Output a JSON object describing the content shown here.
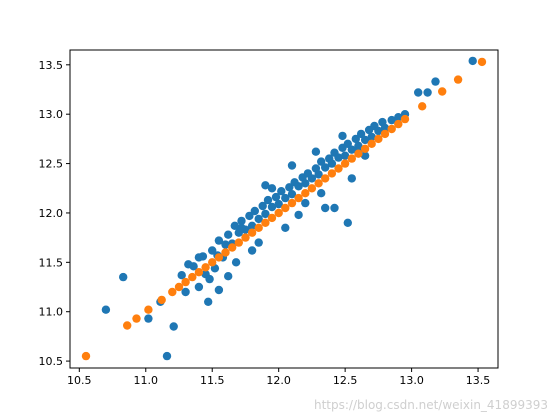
{
  "chart_data": {
    "type": "scatter",
    "title": "",
    "xlabel": "",
    "ylabel": "",
    "xlim": [
      10.43,
      13.65
    ],
    "ylim": [
      10.43,
      13.65
    ],
    "grid": false,
    "x_ticks": [
      "10.5",
      "11.0",
      "11.5",
      "12.0",
      "12.5",
      "13.0",
      "13.5"
    ],
    "y_ticks": [
      "10.5",
      "11.0",
      "11.5",
      "12.0",
      "12.5",
      "13.0",
      "13.5"
    ],
    "series": [
      {
        "color": "#1f77b4",
        "x": [
          10.7,
          10.83,
          11.02,
          11.11,
          11.16,
          11.21,
          11.27,
          11.3,
          11.32,
          11.36,
          11.4,
          11.43,
          11.45,
          11.47,
          11.5,
          11.52,
          11.54,
          11.55,
          11.58,
          11.6,
          11.62,
          11.65,
          11.67,
          11.7,
          11.72,
          11.75,
          11.78,
          11.8,
          11.82,
          11.85,
          11.88,
          11.9,
          11.92,
          11.95,
          11.98,
          12.0,
          12.02,
          12.05,
          12.08,
          12.1,
          12.12,
          12.15,
          12.18,
          12.2,
          12.22,
          12.25,
          12.28,
          12.3,
          12.32,
          12.35,
          12.38,
          12.4,
          12.42,
          12.45,
          12.48,
          12.5,
          12.52,
          12.55,
          12.58,
          12.6,
          12.62,
          12.65,
          12.68,
          12.7,
          12.72,
          12.75,
          12.78,
          12.8,
          12.85,
          12.9,
          12.95,
          13.05,
          13.12,
          13.18,
          13.46,
          11.55,
          11.62,
          11.72,
          11.85,
          11.95,
          12.05,
          12.1,
          12.2,
          12.32,
          12.42,
          12.52,
          12.6,
          12.48,
          12.35,
          11.4,
          11.48,
          12.15,
          12.55,
          11.9,
          11.68,
          12.28,
          11.8,
          12.65
        ],
        "y": [
          11.02,
          11.35,
          10.93,
          11.1,
          10.55,
          10.85,
          11.37,
          11.2,
          11.48,
          11.46,
          11.25,
          11.56,
          11.38,
          11.1,
          11.62,
          11.44,
          11.57,
          11.72,
          11.55,
          11.68,
          11.78,
          11.69,
          11.87,
          11.8,
          11.92,
          11.83,
          11.97,
          11.87,
          12.02,
          11.94,
          12.07,
          11.99,
          12.13,
          12.06,
          12.16,
          12.09,
          12.22,
          12.15,
          12.26,
          12.19,
          12.31,
          12.27,
          12.36,
          12.3,
          12.4,
          12.35,
          12.45,
          12.39,
          12.52,
          12.46,
          12.55,
          12.5,
          12.61,
          12.56,
          12.66,
          12.58,
          12.7,
          12.64,
          12.75,
          12.68,
          12.8,
          12.74,
          12.84,
          12.77,
          12.88,
          12.83,
          12.92,
          12.86,
          12.94,
          12.97,
          13.0,
          13.22,
          13.22,
          13.33,
          13.54,
          11.22,
          11.36,
          11.85,
          11.7,
          12.25,
          11.85,
          12.48,
          12.1,
          12.2,
          12.05,
          11.9,
          12.62,
          12.78,
          12.05,
          11.55,
          11.33,
          11.98,
          12.35,
          12.28,
          11.5,
          12.62,
          11.62,
          12.58
        ]
      },
      {
        "color": "#ff7f0e",
        "x": [
          10.55,
          10.86,
          10.93,
          11.02,
          11.12,
          11.2,
          11.25,
          11.3,
          11.35,
          11.4,
          11.45,
          11.5,
          11.55,
          11.6,
          11.65,
          11.7,
          11.75,
          11.8,
          11.85,
          11.9,
          11.95,
          12.0,
          12.05,
          12.1,
          12.15,
          12.2,
          12.25,
          12.3,
          12.35,
          12.4,
          12.45,
          12.5,
          12.55,
          12.6,
          12.65,
          12.7,
          12.75,
          12.8,
          12.85,
          12.9,
          12.95,
          13.08,
          13.23,
          13.35,
          13.53
        ],
        "y": [
          10.55,
          10.86,
          10.93,
          11.02,
          11.12,
          11.2,
          11.25,
          11.3,
          11.35,
          11.4,
          11.45,
          11.5,
          11.55,
          11.6,
          11.65,
          11.7,
          11.75,
          11.8,
          11.85,
          11.9,
          11.95,
          12.0,
          12.05,
          12.1,
          12.15,
          12.2,
          12.25,
          12.3,
          12.35,
          12.4,
          12.45,
          12.5,
          12.55,
          12.6,
          12.65,
          12.7,
          12.75,
          12.8,
          12.85,
          12.9,
          12.95,
          13.08,
          13.23,
          13.35,
          13.53
        ]
      }
    ]
  },
  "watermark": "https://blog.csdn.net/weixin_41899393"
}
